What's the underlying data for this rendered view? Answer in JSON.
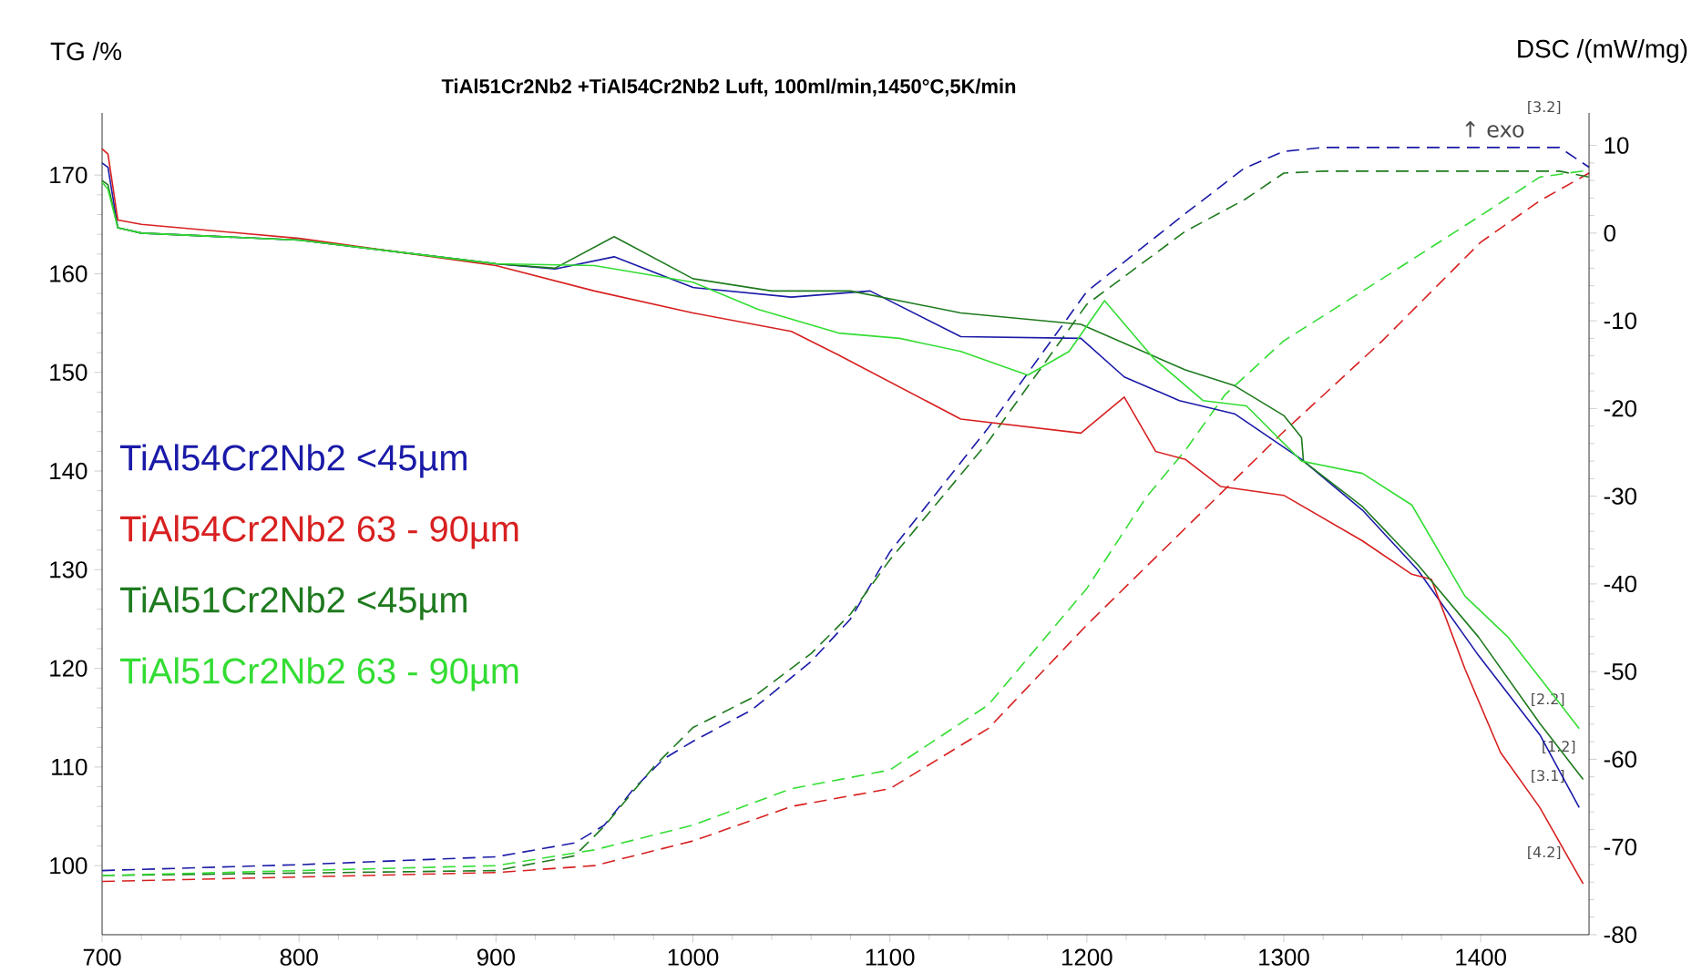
{
  "chart_data": {
    "type": "line",
    "title": "TiAl51Cr2Nb2 +TiAl54Cr2Nb2  Luft, 100ml/min,1450°C,5K/min",
    "ylabel": "TG /%",
    "y2label": "DSC /(mW/mg)",
    "xlim": [
      700,
      1455
    ],
    "xticks": [
      700,
      800,
      900,
      1000,
      1100,
      1200,
      1300,
      1400
    ],
    "ylim": [
      93,
      176.3
    ],
    "yticks": [
      100,
      110,
      120,
      130,
      140,
      150,
      160,
      170
    ],
    "y2lim": [
      -80,
      13.7
    ],
    "y2ticks": [
      -80,
      -70,
      -60,
      -50,
      -40,
      -30,
      -20,
      -10,
      0,
      10
    ],
    "legend": "left",
    "marker": "none",
    "series": [
      {
        "color": "#1a1aa8",
        "axis": "y",
        "line_style": "dashed",
        "x": [
          700,
          800,
          900,
          940,
          955,
          970,
          985,
          1000,
          1030,
          1060,
          1080,
          1100,
          1150,
          1200,
          1250,
          1280,
          1300,
          1320,
          1440,
          1455
        ],
        "values": [
          99.5,
          100.1,
          100.9,
          102.3,
          104.1,
          107.8,
          110.8,
          112.6,
          115.8,
          120.7,
          125,
          131.8,
          144.4,
          158.2,
          166.1,
          170.7,
          172.4,
          172.8,
          172.8,
          170.8
        ]
      },
      {
        "color": "#d82020",
        "axis": "y",
        "line_style": "dashed",
        "x": [
          700,
          900,
          950,
          1000,
          1050,
          1100,
          1150,
          1200,
          1250,
          1300,
          1350,
          1400,
          1430,
          1455
        ],
        "values": [
          98.4,
          99.3,
          100,
          102.5,
          106,
          107.8,
          113.9,
          124.4,
          134.2,
          144,
          153.2,
          163.2,
          167.4,
          170.2
        ]
      },
      {
        "color": "#1e7a1e",
        "axis": "y",
        "line_style": "dashed",
        "x": [
          700,
          900,
          940,
          955,
          980,
          1000,
          1030,
          1060,
          1080,
          1100,
          1150,
          1200,
          1250,
          1280,
          1300,
          1320,
          1440,
          1455
        ],
        "values": [
          99,
          99.5,
          101,
          104,
          110,
          114,
          117,
          121.5,
          125.5,
          131,
          143,
          156.9,
          164.3,
          167.5,
          170.2,
          170.4,
          170.4,
          169.8
        ]
      },
      {
        "color": "#33dd33",
        "axis": "y",
        "line_style": "dashed",
        "x": [
          700,
          900,
          950,
          1000,
          1050,
          1100,
          1150,
          1200,
          1230,
          1250,
          1270,
          1300,
          1350,
          1400,
          1430,
          1455
        ],
        "values": [
          99,
          100,
          101.6,
          104.1,
          107.8,
          109.7,
          116.3,
          128.1,
          137.3,
          142.1,
          147.7,
          153.2,
          159.5,
          165.9,
          169.8,
          170.5
        ]
      },
      {
        "name": "TiAl54Cr2Nb2 <45µm",
        "color": "#1a1aa8",
        "axis": "y2",
        "line_style": "solid",
        "x": [
          700,
          703,
          708,
          720,
          800,
          900,
          930,
          960,
          1000,
          1050,
          1090,
          1136,
          1197,
          1219,
          1247,
          1275,
          1309,
          1340,
          1368,
          1399,
          1430,
          1450
        ],
        "values": [
          8,
          7.5,
          0.6,
          0,
          -0.8,
          -3.5,
          -4.1,
          -2.7,
          -6.2,
          -7.3,
          -6.6,
          -11.8,
          -12,
          -16.4,
          -19.1,
          -20.6,
          -25.8,
          -31.6,
          -38.4,
          -48.2,
          -57.2,
          -65.5
        ]
      },
      {
        "name": "TiAl54Cr2Nb2 63 -  90µm",
        "color": "#d82020",
        "axis": "y2",
        "line_style": "solid",
        "x": [
          700,
          703,
          708,
          720,
          800,
          900,
          950,
          1000,
          1050,
          1074,
          1136,
          1197,
          1219,
          1235,
          1250,
          1268,
          1300,
          1340,
          1365,
          1375,
          1392,
          1410,
          1430,
          1452
        ],
        "values": [
          9.6,
          9,
          1.5,
          1,
          -0.6,
          -3.7,
          -6.6,
          -9.1,
          -11.2,
          -13.9,
          -21.2,
          -22.8,
          -18.7,
          -24.9,
          -25.8,
          -28.9,
          -29.9,
          -35.1,
          -38.9,
          -39.5,
          -49.7,
          -59.2,
          -65.5,
          -74.2
        ]
      },
      {
        "name": "TiAl51Cr2Nb2 <45µm",
        "color": "#1e7a1e",
        "axis": "y2",
        "line_style": "solid",
        "x": [
          700,
          703,
          708,
          720,
          800,
          900,
          930,
          960,
          1000,
          1040,
          1080,
          1136,
          1197,
          1250,
          1275,
          1300,
          1309,
          1310,
          1340,
          1368,
          1399,
          1430,
          1452
        ],
        "values": [
          6,
          5.5,
          0.6,
          0,
          -0.8,
          -3.5,
          -4,
          -0.4,
          -5.2,
          -6.6,
          -6.6,
          -9.1,
          -10.4,
          -15.6,
          -17.4,
          -20.8,
          -23.3,
          -26,
          -31.2,
          -37.8,
          -46.1,
          -55.9,
          -62.3
        ]
      },
      {
        "name": "TiAl51Cr2Nb2 63 -  90µm",
        "color": "#33dd33",
        "axis": "y2",
        "line_style": "solid",
        "x": [
          700,
          703,
          708,
          720,
          800,
          900,
          950,
          1000,
          1033,
          1074,
          1105,
          1136,
          1170,
          1191,
          1209,
          1234,
          1259,
          1281,
          1309,
          1340,
          1365,
          1392,
          1414,
          1430,
          1450
        ],
        "values": [
          5.8,
          5,
          0.6,
          0,
          -0.8,
          -3.5,
          -3.7,
          -5.6,
          -8.7,
          -11.4,
          -12,
          -13.5,
          -16.2,
          -13.5,
          -7.7,
          -14.3,
          -19.1,
          -19.7,
          -26,
          -27.4,
          -31,
          -41.4,
          -46.1,
          -50.7,
          -56.5
        ]
      }
    ],
    "annotations": [
      "↑ exo",
      "[3.2]",
      "[2.2]",
      "[1.2]",
      "[3.1]",
      "[4.2]"
    ]
  }
}
